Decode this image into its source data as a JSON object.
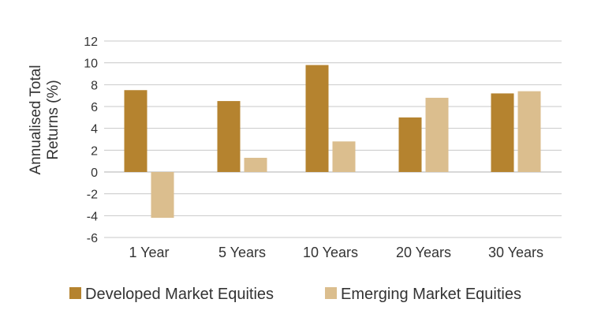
{
  "chart_data": {
    "type": "bar",
    "title": "",
    "xlabel": "",
    "ylabel_lines": [
      "Annualised Total",
      "Returns (%)"
    ],
    "categories": [
      "1 Year",
      "5 Years",
      "10 Years",
      "20 Years",
      "30 Years"
    ],
    "series": [
      {
        "name": "Developed Market Equities",
        "color": "#b5832f",
        "values": [
          7.5,
          6.5,
          9.8,
          5.0,
          7.2
        ]
      },
      {
        "name": "Emerging Market Equities",
        "color": "#dbbe8e",
        "values": [
          -4.2,
          1.3,
          2.8,
          6.8,
          7.4
        ]
      }
    ],
    "ylim": [
      -6,
      12
    ],
    "yticks": [
      "12",
      "10",
      "8",
      "6",
      "4",
      "2",
      "0",
      "-2",
      "-4",
      "-6"
    ],
    "grid": true,
    "legend_position": "bottom"
  }
}
